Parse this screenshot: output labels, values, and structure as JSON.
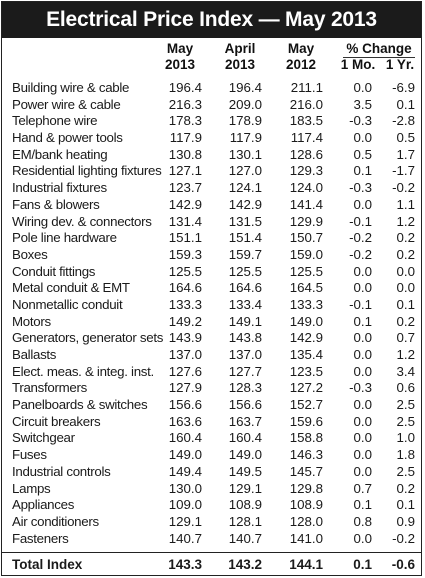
{
  "title": "Electrical Price Index — May 2013",
  "headers": {
    "col1": [
      "May",
      "2013"
    ],
    "col2": [
      "April",
      "2013"
    ],
    "col3": [
      "May",
      "2012"
    ],
    "pct_change": "% Change",
    "col4": "1 Mo.",
    "col5": "1 Yr."
  },
  "rows": [
    {
      "label": "Building wire & cable",
      "may2013": "196.4",
      "apr2013": "196.4",
      "may2012": "211.1",
      "mo1": "0.0",
      "yr1": "-6.9"
    },
    {
      "label": "Power wire & cable",
      "may2013": "216.3",
      "apr2013": "209.0",
      "may2012": "216.0",
      "mo1": "3.5",
      "yr1": "0.1"
    },
    {
      "label": "Telephone wire",
      "may2013": "178.3",
      "apr2013": "178.9",
      "may2012": "183.5",
      "mo1": "-0.3",
      "yr1": "-2.8"
    },
    {
      "label": "Hand & power tools",
      "may2013": "117.9",
      "apr2013": "117.9",
      "may2012": "117.4",
      "mo1": "0.0",
      "yr1": "0.5"
    },
    {
      "label": "EM/bank heating",
      "may2013": "130.8",
      "apr2013": "130.1",
      "may2012": "128.6",
      "mo1": "0.5",
      "yr1": "1.7"
    },
    {
      "label": "Residential lighting fixtures",
      "may2013": "127.1",
      "apr2013": "127.0",
      "may2012": "129.3",
      "mo1": "0.1",
      "yr1": "-1.7"
    },
    {
      "label": "Industrial fixtures",
      "may2013": "123.7",
      "apr2013": "124.1",
      "may2012": "124.0",
      "mo1": "-0.3",
      "yr1": "-0.2"
    },
    {
      "label": "Fans & blowers",
      "may2013": "142.9",
      "apr2013": "142.9",
      "may2012": "141.4",
      "mo1": "0.0",
      "yr1": "1.1"
    },
    {
      "label": "Wiring dev. & connectors",
      "may2013": "131.4",
      "apr2013": "131.5",
      "may2012": "129.9",
      "mo1": "-0.1",
      "yr1": "1.2"
    },
    {
      "label": "Pole line hardware",
      "may2013": "151.1",
      "apr2013": "151.4",
      "may2012": "150.7",
      "mo1": "-0.2",
      "yr1": "0.2"
    },
    {
      "label": "Boxes",
      "may2013": "159.3",
      "apr2013": "159.7",
      "may2012": "159.0",
      "mo1": "-0.2",
      "yr1": "0.2"
    },
    {
      "label": "Conduit fittings",
      "may2013": "125.5",
      "apr2013": "125.5",
      "may2012": "125.5",
      "mo1": "0.0",
      "yr1": "0.0"
    },
    {
      "label": "Metal conduit & EMT",
      "may2013": "164.6",
      "apr2013": "164.6",
      "may2012": "164.5",
      "mo1": "0.0",
      "yr1": "0.0"
    },
    {
      "label": "Nonmetallic conduit",
      "may2013": "133.3",
      "apr2013": "133.4",
      "may2012": "133.3",
      "mo1": "-0.1",
      "yr1": "0.1"
    },
    {
      "label": "Motors",
      "may2013": "149.2",
      "apr2013": "149.1",
      "may2012": "149.0",
      "mo1": "0.1",
      "yr1": "0.2"
    },
    {
      "label": "Generators, generator sets",
      "may2013": "143.9",
      "apr2013": "143.8",
      "may2012": "142.9",
      "mo1": "0.0",
      "yr1": "0.7"
    },
    {
      "label": "Ballasts",
      "may2013": "137.0",
      "apr2013": "137.0",
      "may2012": "135.4",
      "mo1": "0.0",
      "yr1": "1.2"
    },
    {
      "label": "Elect. meas. & integ. inst.",
      "may2013": "127.6",
      "apr2013": "127.7",
      "may2012": "123.5",
      "mo1": "0.0",
      "yr1": "3.4"
    },
    {
      "label": "Transformers",
      "may2013": "127.9",
      "apr2013": "128.3",
      "may2012": "127.2",
      "mo1": "-0.3",
      "yr1": "0.6"
    },
    {
      "label": "Panelboards & switches",
      "may2013": "156.6",
      "apr2013": "156.6",
      "may2012": "152.7",
      "mo1": "0.0",
      "yr1": "2.5"
    },
    {
      "label": "Circuit breakers",
      "may2013": "163.6",
      "apr2013": "163.7",
      "may2012": "159.6",
      "mo1": "0.0",
      "yr1": "2.5"
    },
    {
      "label": "Switchgear",
      "may2013": "160.4",
      "apr2013": "160.4",
      "may2012": "158.8",
      "mo1": "0.0",
      "yr1": "1.0"
    },
    {
      "label": "Fuses",
      "may2013": "149.0",
      "apr2013": "149.0",
      "may2012": "146.3",
      "mo1": "0.0",
      "yr1": "1.8"
    },
    {
      "label": "Industrial controls",
      "may2013": "149.4",
      "apr2013": "149.5",
      "may2012": "145.7",
      "mo1": "0.0",
      "yr1": "2.5"
    },
    {
      "label": "Lamps",
      "may2013": "130.0",
      "apr2013": "129.1",
      "may2012": "129.8",
      "mo1": "0.7",
      "yr1": "0.2"
    },
    {
      "label": "Appliances",
      "may2013": "109.0",
      "apr2013": "108.9",
      "may2012": "108.9",
      "mo1": "0.1",
      "yr1": "0.1"
    },
    {
      "label": "Air conditioners",
      "may2013": "129.1",
      "apr2013": "128.1",
      "may2012": "128.0",
      "mo1": "0.8",
      "yr1": "0.9"
    },
    {
      "label": "Fasteners",
      "may2013": "140.7",
      "apr2013": "140.7",
      "may2012": "141.0",
      "mo1": "0.0",
      "yr1": "-0.2"
    }
  ],
  "total": {
    "label": "Total Index",
    "may2013": "143.3",
    "apr2013": "143.2",
    "may2012": "144.1",
    "mo1": "0.1",
    "yr1": "-0.6"
  }
}
